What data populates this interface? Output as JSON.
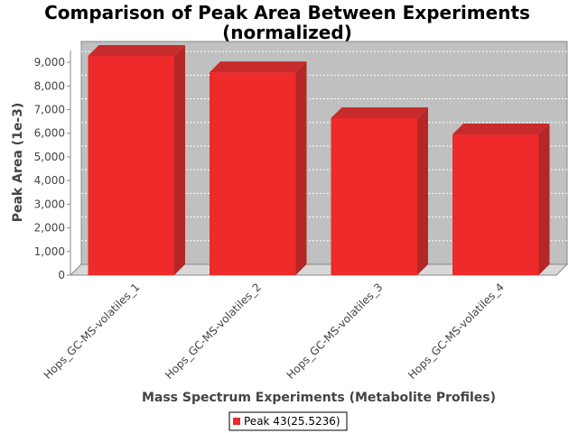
{
  "chart_data": {
    "type": "bar",
    "title_lines": [
      "Comparison of Peak Area Between Experiments",
      "(normalized)"
    ],
    "xlabel": "Mass Spectrum Experiments (Metabolite Profiles)",
    "ylabel": "Peak Area (1e-3)",
    "categories": [
      "Hops_GC-MS-volatiles_1",
      "Hops_GC-MS-volatiles_2",
      "Hops_GC-MS-volatiles_3",
      "Hops_GC-MS-volatiles_4"
    ],
    "series": [
      {
        "name": "Peak 43(25.5236)",
        "values": [
          9270,
          8580,
          6640,
          5950
        ],
        "color": "#ee2a2a"
      }
    ],
    "ylim": [
      0,
      9500
    ],
    "yticks": [
      0,
      1000,
      2000,
      3000,
      4000,
      5000,
      6000,
      7000,
      8000,
      9000
    ],
    "ytick_labels": [
      "0",
      "1,000",
      "2,000",
      "3,000",
      "4,000",
      "5,000",
      "6,000",
      "7,000",
      "8,000",
      "9,000"
    ],
    "grid": true,
    "plot_background": "#c0c0c0",
    "legend_position": "bottom",
    "style": "3d"
  }
}
